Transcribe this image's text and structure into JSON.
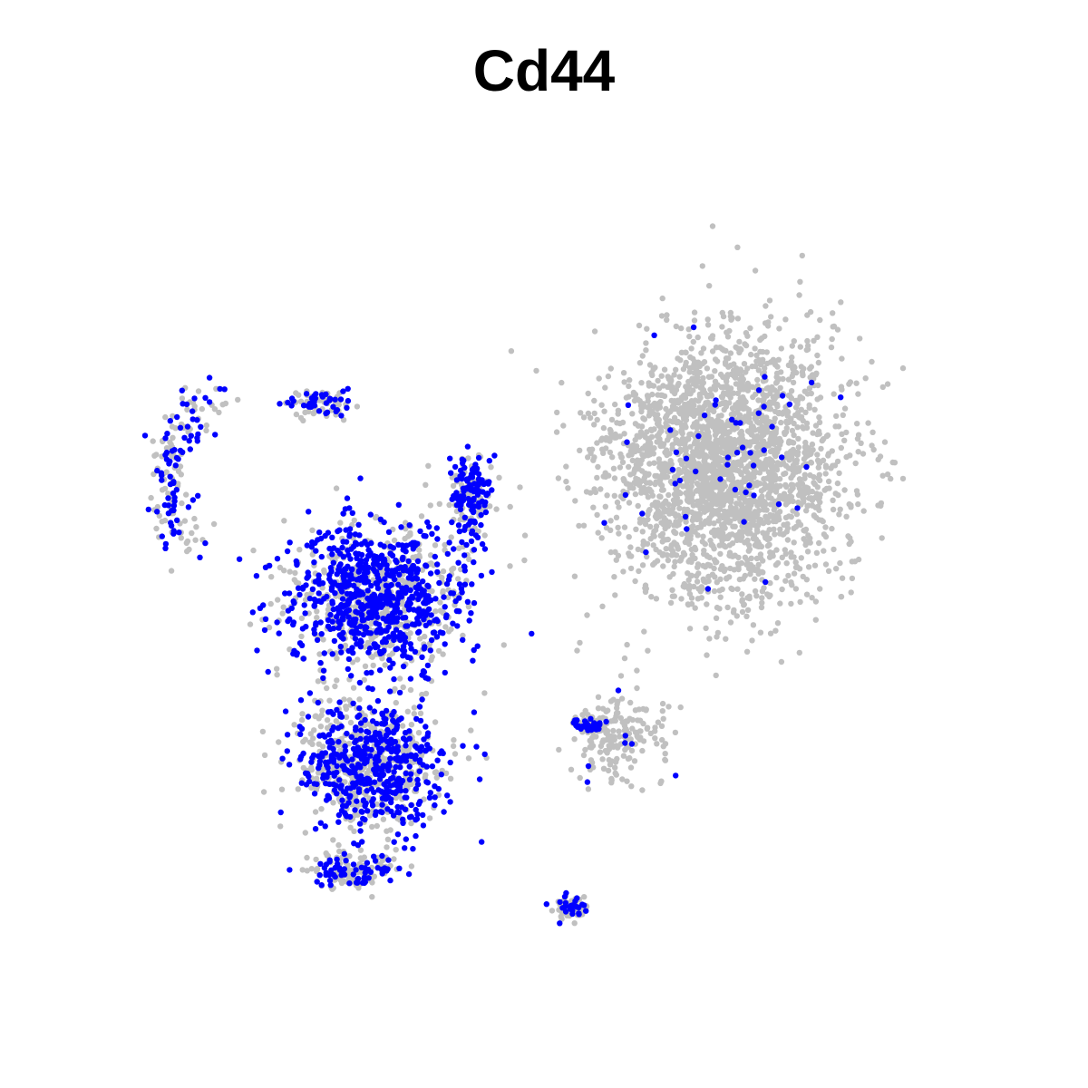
{
  "chart_data": {
    "type": "scatter",
    "title": "Cd44",
    "xlabel": "",
    "ylabel": "",
    "axes_visible": false,
    "grid": false,
    "legend": "none",
    "colors": {
      "expressing": "#0000ff",
      "non_expressing": "#c0c0c0",
      "background": "#ffffff"
    },
    "seed": 44,
    "x_range": [
      -10,
      10
    ],
    "y_range": [
      -10,
      10
    ],
    "clusters": [
      {
        "name": "left-hook",
        "center": [
          -8.0,
          3.6
        ],
        "spread": [
          0.55,
          0.55
        ],
        "count": 170,
        "expressing_fraction": 0.45,
        "shape": "arc",
        "arc_center": [
          -6.6,
          2.4
        ],
        "arc_radius": 1.8,
        "arc_start": 100,
        "arc_end": 230
      },
      {
        "name": "left-hook-top",
        "center": [
          -5.0,
          4.1
        ],
        "spread": [
          0.6,
          0.25
        ],
        "count": 90,
        "expressing_fraction": 0.45
      },
      {
        "name": "left-main-upper",
        "center": [
          -3.7,
          -0.2
        ],
        "spread": [
          1.8,
          1.5
        ],
        "count": 1200,
        "expressing_fraction": 0.55
      },
      {
        "name": "left-main-top-spur",
        "center": [
          -1.6,
          2.1
        ],
        "spread": [
          0.4,
          0.9
        ],
        "count": 200,
        "expressing_fraction": 0.55
      },
      {
        "name": "left-main-lower",
        "center": [
          -3.8,
          -3.9
        ],
        "spread": [
          1.5,
          1.3
        ],
        "count": 900,
        "expressing_fraction": 0.5
      },
      {
        "name": "left-main-bottom",
        "center": [
          -4.2,
          -6.2
        ],
        "spread": [
          0.9,
          0.35
        ],
        "count": 160,
        "expressing_fraction": 0.35
      },
      {
        "name": "right-large",
        "center": [
          4.0,
          2.7
        ],
        "spread": [
          2.4,
          2.6
        ],
        "count": 2600,
        "expressing_fraction": 0.02
      },
      {
        "name": "right-tail",
        "center": [
          1.6,
          -3.3
        ],
        "spread": [
          1.0,
          1.0
        ],
        "count": 180,
        "expressing_fraction": 0.05
      },
      {
        "name": "bridge-cluster",
        "center": [
          1.0,
          -3.0
        ],
        "spread": [
          0.35,
          0.15
        ],
        "count": 70,
        "expressing_fraction": 0.55
      },
      {
        "name": "bottom-small",
        "center": [
          0.6,
          -7.0
        ],
        "spread": [
          0.35,
          0.25
        ],
        "count": 90,
        "expressing_fraction": 0.3
      }
    ]
  }
}
